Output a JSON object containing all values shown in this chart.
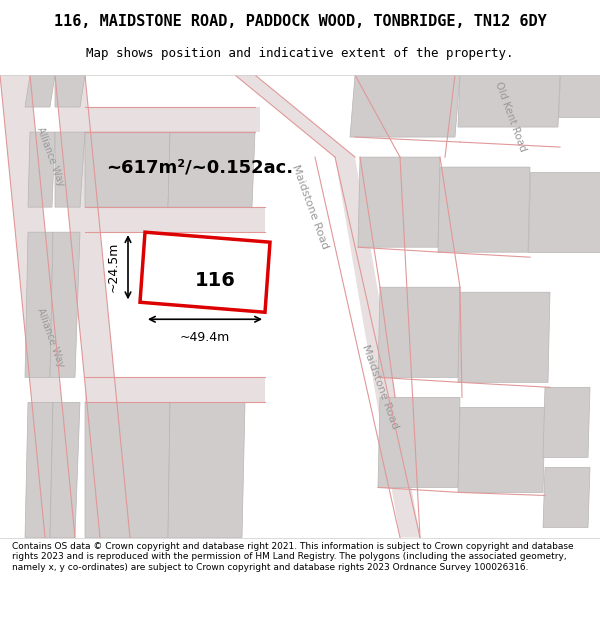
{
  "title_line1": "116, MAIDSTONE ROAD, PADDOCK WOOD, TONBRIDGE, TN12 6DY",
  "title_line2": "Map shows position and indicative extent of the property.",
  "footer_text": "Contains OS data © Crown copyright and database right 2021. This information is subject to Crown copyright and database rights 2023 and is reproduced with the permission of HM Land Registry. The polygons (including the associated geometry, namely x, y co-ordinates) are subject to Crown copyright and database rights 2023 Ordnance Survey 100026316.",
  "area_text": "~617m²/~0.152ac.",
  "width_text": "~49.4m",
  "height_text": "~24.5m",
  "number_text": "116",
  "bg_color": "#f5f0f0",
  "map_bg": "#f0eeee",
  "road_fill": "#e8e8e8",
  "block_fill": "#d8d8d8",
  "red_line_color": "#dd0000",
  "pink_line_color": "#e8a0a0",
  "street_label_maidstone": "Maidstone Road",
  "street_label_alliance1": "Alliance Way",
  "street_label_alliance2": "Alliance Way",
  "street_label_oldkent": "Old Kent Road"
}
